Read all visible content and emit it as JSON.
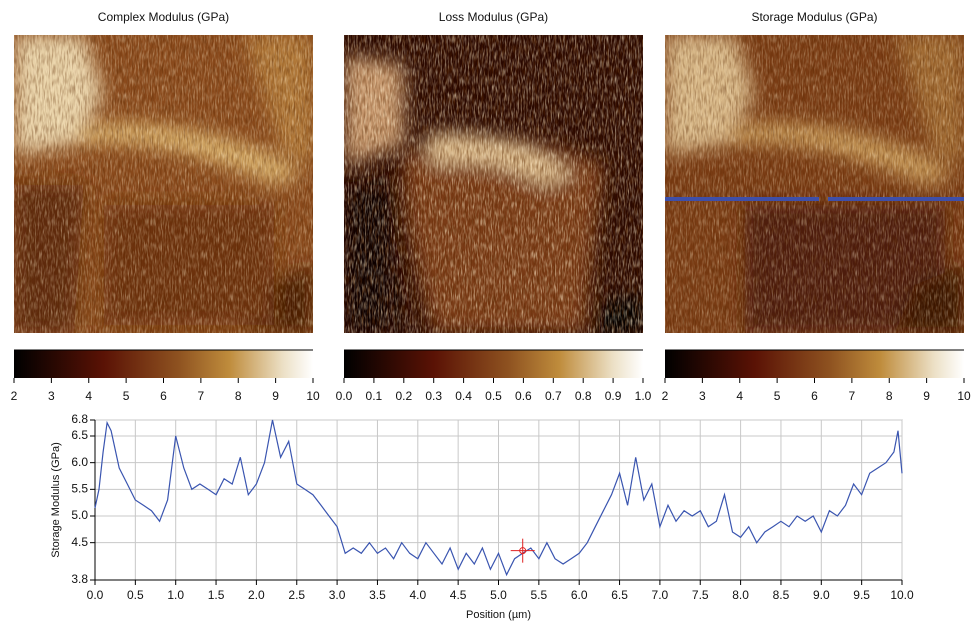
{
  "images": [
    {
      "title": "Complex Modulus (GPa)",
      "clim": [
        2,
        10
      ],
      "cticks": [
        2,
        3,
        4,
        5,
        6,
        7,
        8,
        9,
        10
      ]
    },
    {
      "title": "Loss Modulus (GPa)",
      "clim": [
        0,
        1
      ],
      "cticks": [
        {
          "value": 0,
          "label": "0.0"
        },
        {
          "value": 0.1,
          "label": "0.1"
        },
        {
          "value": 0.2,
          "label": "0.2"
        },
        {
          "value": 0.3,
          "label": "0.3"
        },
        {
          "value": 0.4,
          "label": "0.4"
        },
        {
          "value": 0.5,
          "label": "0.5"
        },
        {
          "value": 0.6,
          "label": "0.6"
        },
        {
          "value": 0.7,
          "label": "0.7"
        },
        {
          "value": 0.8,
          "label": "0.8"
        },
        {
          "value": 0.9,
          "label": "0.9"
        },
        {
          "value": 1,
          "label": "1.0"
        }
      ]
    },
    {
      "title": "Storage Modulus (GPa)",
      "clim": [
        2,
        10
      ],
      "cticks": [
        2,
        3,
        4,
        5,
        6,
        7,
        8,
        9,
        10
      ]
    }
  ],
  "chart_data": {
    "type": "line",
    "xlabel": "Position (µm)",
    "ylabel": "Storage Modulus (GPa)",
    "color": "#3a55b0",
    "grid": true,
    "x": [
      0,
      0.05,
      0.1,
      0.15,
      0.2,
      0.3,
      0.4,
      0.5,
      0.6,
      0.7,
      0.8,
      0.9,
      1.0,
      1.1,
      1.2,
      1.3,
      1.4,
      1.5,
      1.6,
      1.7,
      1.8,
      1.9,
      2.0,
      2.1,
      2.2,
      2.3,
      2.4,
      2.5,
      2.6,
      2.7,
      2.8,
      2.9,
      3.0,
      3.1,
      3.2,
      3.3,
      3.4,
      3.5,
      3.6,
      3.7,
      3.8,
      3.9,
      4.0,
      4.1,
      4.2,
      4.3,
      4.4,
      4.5,
      4.6,
      4.7,
      4.8,
      4.9,
      5.0,
      5.1,
      5.2,
      5.3,
      5.4,
      5.5,
      5.6,
      5.7,
      5.8,
      5.9,
      6.0,
      6.1,
      6.2,
      6.3,
      6.4,
      6.5,
      6.6,
      6.7,
      6.8,
      6.9,
      7.0,
      7.1,
      7.2,
      7.3,
      7.4,
      7.5,
      7.6,
      7.7,
      7.8,
      7.9,
      8.0,
      8.1,
      8.2,
      8.3,
      8.4,
      8.5,
      8.6,
      8.7,
      8.8,
      8.9,
      9.0,
      9.1,
      9.2,
      9.3,
      9.4,
      9.5,
      9.6,
      9.7,
      9.8,
      9.9,
      9.95,
      10.0
    ],
    "values": [
      5.15,
      5.5,
      6.2,
      6.75,
      6.6,
      5.9,
      5.6,
      5.3,
      5.2,
      5.1,
      4.9,
      5.3,
      6.5,
      5.9,
      5.5,
      5.6,
      5.5,
      5.4,
      5.7,
      5.6,
      6.1,
      5.4,
      5.6,
      6.0,
      6.8,
      6.1,
      6.4,
      5.6,
      5.5,
      5.4,
      5.2,
      5.0,
      4.8,
      4.3,
      4.4,
      4.3,
      4.5,
      4.3,
      4.4,
      4.2,
      4.5,
      4.3,
      4.2,
      4.5,
      4.3,
      4.1,
      4.4,
      4.0,
      4.3,
      4.1,
      4.4,
      4.0,
      4.3,
      3.9,
      4.2,
      4.3,
      4.4,
      4.2,
      4.5,
      4.2,
      4.1,
      4.2,
      4.3,
      4.5,
      4.8,
      5.1,
      5.4,
      5.8,
      5.2,
      6.1,
      5.3,
      5.6,
      4.8,
      5.2,
      4.9,
      5.1,
      5.0,
      5.1,
      4.8,
      4.9,
      5.4,
      4.7,
      4.6,
      4.8,
      4.5,
      4.7,
      4.8,
      4.9,
      4.8,
      5.0,
      4.9,
      5.0,
      4.7,
      5.1,
      5.0,
      5.2,
      5.6,
      5.4,
      5.8,
      5.9,
      6.0,
      6.2,
      6.6,
      5.8
    ],
    "cursor": {
      "x": 5.3,
      "y": 4.35
    },
    "xlim": [
      0,
      10
    ],
    "ylim": [
      3.8,
      6.8
    ],
    "xticks": [
      {
        "value": 0,
        "label": "0.0"
      },
      0.5,
      {
        "value": 1,
        "label": "1.0"
      },
      1.5,
      {
        "value": 2,
        "label": "2.0"
      },
      2.5,
      {
        "value": 3,
        "label": "3.0"
      },
      3.5,
      {
        "value": 4,
        "label": "4.0"
      },
      4.5,
      {
        "value": 5,
        "label": "5.0"
      },
      5.5,
      {
        "value": 6,
        "label": "6.0"
      },
      6.5,
      {
        "value": 7,
        "label": "7.0"
      },
      7.5,
      {
        "value": 8,
        "label": "8.0"
      },
      8.5,
      {
        "value": 9,
        "label": "9.0"
      },
      9.5,
      {
        "value": 10,
        "label": "10.0"
      }
    ],
    "yticks": [
      3.8,
      4.5,
      {
        "value": 5,
        "label": "5.0"
      },
      5.5,
      {
        "value": 6,
        "label": "6.0"
      },
      6.5,
      6.8
    ]
  }
}
